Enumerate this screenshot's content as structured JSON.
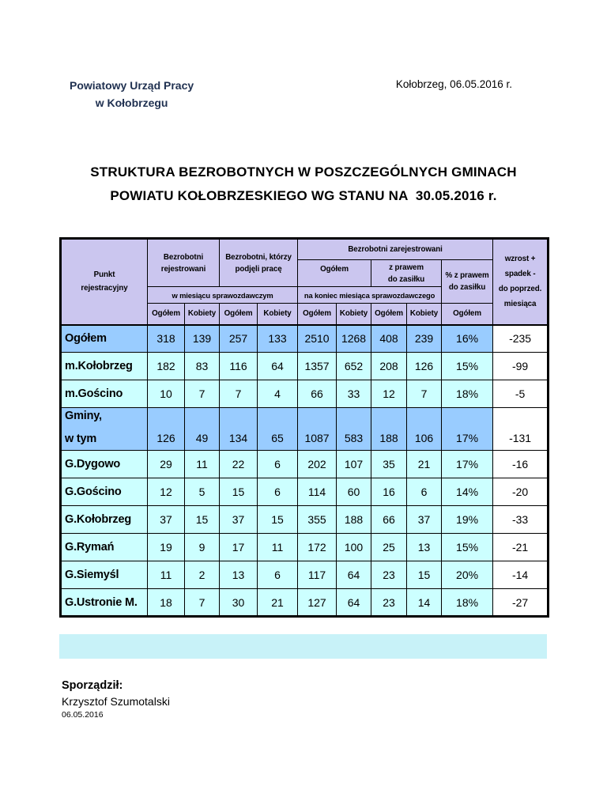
{
  "header": {
    "org_line1": "Powiatowy Urząd Pracy",
    "org_line2": "w Kołobrzegu",
    "date_place": "Kołobrzeg, 06.05.2016 r."
  },
  "title": {
    "line1": "STRUKTURA BEZROBOTNYCH W POSZCZEGÓLNYCH GMINACH",
    "line2": "POWIATU KOŁOBRZESKIEGO WG STANU NA  30.05.2016 r."
  },
  "colors": {
    "header_bg": "#CBC6EF",
    "blue_row_bg": "#99CCFF",
    "cyan_row_bg": "#CCFFFF",
    "pct_col_bg": "#99CCFF",
    "bar_bg": "#C8F2F8"
  },
  "table": {
    "head": {
      "punkt": [
        "Punkt",
        "rejestracyjny"
      ],
      "rejestrowani": [
        "Bezrobotni",
        "rejestrowani"
      ],
      "podjeli": [
        "Bezrobotni, którzy",
        "podjęli pracę"
      ],
      "zarejestrowani": "Bezrobotni zarejestrowani",
      "ogolem": "Ogółem",
      "z_prawem": [
        "z prawem",
        "do zasiłku"
      ],
      "pct_z_prawem": [
        "% z prawem",
        "do zasiłku"
      ],
      "w_miesiacu": "w miesiącu sprawozdawczym",
      "na_koniec": "na koniec miesiąca sprawozdawczego",
      "wzrost": [
        "wzrost +",
        "spadek -",
        "do poprzed.",
        "miesiąca"
      ],
      "sub": [
        "Ogółem",
        "Kobiety",
        "Ogółem",
        "Kobiety",
        "Ogółem",
        "Kobiety",
        "Ogółem",
        "Kobiety",
        "Ogółem"
      ]
    },
    "rows": [
      {
        "label": "Ogółem",
        "values": [
          "318",
          "139",
          "257",
          "133",
          "2510",
          "1268",
          "408",
          "239",
          "16%"
        ],
        "change": "-235",
        "style": "blue"
      },
      {
        "label": "m.Kołobrzeg",
        "values": [
          "182",
          "83",
          "116",
          "64",
          "1357",
          "652",
          "208",
          "126",
          "15%"
        ],
        "change": "-99",
        "style": "cyan"
      },
      {
        "label": "m.Gościno",
        "values": [
          "10",
          "7",
          "7",
          "4",
          "66",
          "33",
          "12",
          "7",
          "18%"
        ],
        "change": "-5",
        "style": "cyan"
      },
      {
        "label": "Gminy,",
        "label2": "w tym",
        "values": [
          "126",
          "49",
          "134",
          "65",
          "1087",
          "583",
          "188",
          "106",
          "17%"
        ],
        "change": "-131",
        "style": "blue",
        "tall": true
      },
      {
        "label": "G.Dygowo",
        "values": [
          "29",
          "11",
          "22",
          "6",
          "202",
          "107",
          "35",
          "21",
          "17%"
        ],
        "change": "-16",
        "style": "cyan"
      },
      {
        "label": "G.Gościno",
        "values": [
          "12",
          "5",
          "15",
          "6",
          "114",
          "60",
          "16",
          "6",
          "14%"
        ],
        "change": "-20",
        "style": "cyan"
      },
      {
        "label": "G.Kołobrzeg",
        "values": [
          "37",
          "15",
          "37",
          "15",
          "355",
          "188",
          "66",
          "37",
          "19%"
        ],
        "change": "-33",
        "style": "cyan"
      },
      {
        "label": "G.Rymań",
        "values": [
          "19",
          "9",
          "17",
          "11",
          "172",
          "100",
          "25",
          "13",
          "15%"
        ],
        "change": "-21",
        "style": "cyan"
      },
      {
        "label": "G.Siemyśl",
        "values": [
          "11",
          "2",
          "13",
          "6",
          "117",
          "64",
          "23",
          "15",
          "20%"
        ],
        "change": "-14",
        "style": "cyan"
      },
      {
        "label": "G.Ustronie M.",
        "values": [
          "18",
          "7",
          "30",
          "21",
          "127",
          "64",
          "23",
          "14",
          "18%"
        ],
        "change": "-27",
        "style": "cyan"
      }
    ]
  },
  "footer": {
    "prepared_label": "Sporządził:",
    "prepared_by": "Krzysztof Szumotalski",
    "prepared_date": "06.05.2016"
  }
}
